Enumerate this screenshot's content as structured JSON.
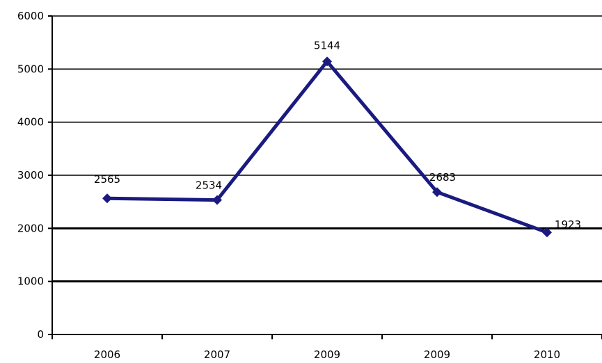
{
  "chart_data": {
    "type": "line",
    "categories": [
      "2006",
      "2007",
      "2009",
      "2009",
      "2010"
    ],
    "series": [
      {
        "values": [
          2565,
          2534,
          5144,
          2683,
          1923
        ],
        "data_labels": [
          "2565",
          "2534",
          "5144",
          "2683",
          "1923"
        ]
      }
    ],
    "ylim": [
      0,
      6000
    ],
    "yticks": [
      0,
      1000,
      2000,
      3000,
      4000,
      5000,
      6000
    ],
    "ytick_labels": [
      "0",
      "1000",
      "2000",
      "3000",
      "4000",
      "5000",
      "6000"
    ],
    "grid": true,
    "legend": "none",
    "title": "",
    "xlabel": "",
    "ylabel": "",
    "colors": {
      "line": "#1a1a80",
      "marker": "#1a1a80",
      "grid": "#000000",
      "axis": "#000000"
    }
  }
}
